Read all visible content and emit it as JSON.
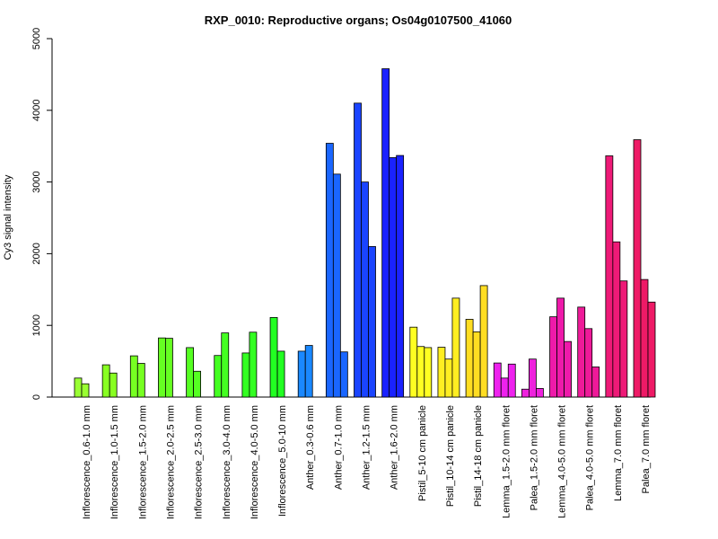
{
  "chart_data": {
    "type": "bar",
    "title": "RXP_0010: Reproductive organs; Os04g0107500_41060",
    "xlabel": "",
    "ylabel": "Cy3 signal intensity",
    "ylim": [
      0,
      5000
    ],
    "yticks": [
      "0",
      "1000",
      "2000",
      "3000",
      "4000",
      "5000"
    ],
    "grid": false,
    "legend": "none",
    "groups": [
      {
        "label": "Inflorescence_0.6-1.0 mm",
        "color": "#99ff33",
        "values": [
          265,
          185
        ]
      },
      {
        "label": "Inflorescence_1.0-1.5 mm",
        "color": "#88ff22",
        "values": [
          450,
          335
        ]
      },
      {
        "label": "Inflorescence_1.5-2.0 mm",
        "color": "#77ff22",
        "values": [
          575,
          470
        ]
      },
      {
        "label": "Inflorescence_2.0-2.5 mm",
        "color": "#66ff22",
        "values": [
          825,
          820
        ]
      },
      {
        "label": "Inflorescence_2.5-3.0 mm",
        "color": "#55ff22",
        "values": [
          690,
          360
        ]
      },
      {
        "label": "Inflorescence_3.0-4.0 mm",
        "color": "#44ff22",
        "values": [
          580,
          895
        ]
      },
      {
        "label": "Inflorescence_4.0-5.0 mm",
        "color": "#33ff22",
        "values": [
          615,
          905
        ]
      },
      {
        "label": "Inflorescence_5.0-10 mm",
        "color": "#22ff22",
        "values": [
          1110,
          640
        ]
      },
      {
        "label": "Anther_0.3-0.6 mm",
        "color": "#1a88ff",
        "values": [
          640,
          720
        ]
      },
      {
        "label": "Anther_0.7-1.0 mm",
        "color": "#1a66ff",
        "values": [
          3540,
          3110,
          630
        ]
      },
      {
        "label": "Anther_1.2-1.5 mm",
        "color": "#1a44ff",
        "values": [
          4100,
          3000,
          2100
        ]
      },
      {
        "label": "Anther_1.6-2.0 mm",
        "color": "#1a22ff",
        "values": [
          4580,
          3340,
          3370
        ]
      },
      {
        "label": "Pistil_5-10 cm panicle",
        "color": "#ffff22",
        "values": [
          975,
          705,
          690
        ]
      },
      {
        "label": "Pistil_10-14 cm panicle",
        "color": "#ffee22",
        "values": [
          695,
          530,
          1380
        ]
      },
      {
        "label": "Pistil_14-18 cm panicle",
        "color": "#ffdd22",
        "values": [
          1085,
          910,
          1555
        ]
      },
      {
        "label": "Lemma_1.5-2.0 mm floret",
        "color": "#ee22ee",
        "values": [
          475,
          265,
          460
        ]
      },
      {
        "label": "Palea_1.5-2.0 mm floret",
        "color": "#ee22dd",
        "values": [
          110,
          530,
          120
        ]
      },
      {
        "label": "Lemma_4.0-5.0 mm floret",
        "color": "#ee1aaa",
        "values": [
          1120,
          1380,
          775
        ]
      },
      {
        "label": "Palea_4.0-5.0 mm floret",
        "color": "#ee1a99",
        "values": [
          1255,
          955,
          420
        ]
      },
      {
        "label": "Lemma_7.0 mm floret",
        "color": "#ee1a77",
        "values": [
          3365,
          2165,
          1620
        ]
      },
      {
        "label": "Palea_7.0 mm floret",
        "color": "#ee1a66",
        "values": [
          3590,
          1640,
          1325
        ]
      }
    ]
  }
}
